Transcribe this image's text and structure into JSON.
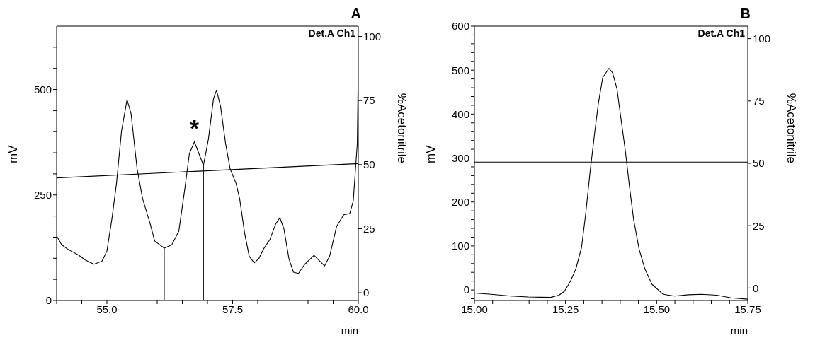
{
  "chart_data": [
    {
      "type": "line",
      "title": "A",
      "xlabel": "min",
      "ylabel": "mV",
      "y2label": "%Acetonitrile",
      "xlim": [
        54,
        60
      ],
      "xticks": [
        {
          "value": 54,
          "label": null
        },
        {
          "value": 54.5,
          "label": null
        },
        {
          "value": 55,
          "label": "55.0"
        },
        {
          "value": 55.5,
          "label": null
        },
        {
          "value": 56,
          "label": null
        },
        {
          "value": 56.5,
          "label": null
        },
        {
          "value": 57,
          "label": null
        },
        {
          "value": 57.5,
          "label": "57.5"
        },
        {
          "value": 58,
          "label": null
        },
        {
          "value": 58.5,
          "label": null
        },
        {
          "value": 59,
          "label": null
        },
        {
          "value": 59.5,
          "label": null
        },
        {
          "value": 60,
          "label": "60.0"
        }
      ],
      "ylim": [
        0,
        650
      ],
      "yticks": [
        0,
        {
          "value": 50,
          "label": null
        },
        {
          "value": 100,
          "label": null
        },
        {
          "value": 150,
          "label": null
        },
        {
          "value": 200,
          "label": null
        },
        250,
        {
          "value": 300,
          "label": null
        },
        {
          "value": 350,
          "label": null
        },
        {
          "value": 400,
          "label": null
        },
        {
          "value": 450,
          "label": null
        },
        500,
        {
          "value": 550,
          "label": null
        },
        {
          "value": 600,
          "label": null
        }
      ],
      "y2lim": [
        -3,
        104
      ],
      "y2ticks": [
        0,
        25,
        50,
        75,
        100
      ],
      "series": [
        {
          "color": "#000000",
          "x": [
            54.0,
            54.1,
            54.24,
            54.43,
            54.57,
            54.74,
            54.9,
            55.0,
            55.1,
            55.19,
            55.29,
            55.4,
            55.48,
            55.6,
            55.71,
            55.86,
            55.95,
            56.14,
            56.29,
            56.43,
            56.55,
            56.64,
            56.74,
            56.83,
            56.92,
            57.02,
            57.12,
            57.18,
            57.26,
            57.36,
            57.45,
            57.57,
            57.64,
            57.74,
            57.83,
            57.93,
            58.02,
            58.12,
            58.24,
            58.36,
            58.44,
            58.52,
            58.62,
            58.71,
            58.81,
            58.93,
            59.12,
            59.21,
            59.33,
            59.43,
            59.57,
            59.71,
            59.83,
            59.9,
            59.98,
            60.0
          ],
          "values": [
            153,
            132,
            120,
            108,
            96,
            86,
            93,
            117,
            194,
            277,
            401,
            476,
            443,
            312,
            241,
            182,
            141,
            124,
            132,
            164,
            265,
            348,
            376,
            348,
            320,
            383,
            478,
            498,
            460,
            372,
            312,
            277,
            241,
            159,
            105,
            89,
            99,
            123,
            144,
            182,
            196,
            170,
            99,
            67,
            64,
            85,
            107,
            96,
            82,
            105,
            176,
            203,
            206,
            236,
            372,
            561
          ]
        },
        {
          "color": "#000000",
          "axis": "y2",
          "x": [
            54,
            60
          ],
          "values": [
            44.8,
            50.4
          ]
        },
        {
          "color": "#000000",
          "x": [
            56.14,
            56.14
          ],
          "values": [
            0,
            124
          ]
        },
        {
          "color": "#000000",
          "x": [
            56.92,
            56.92
          ],
          "values": [
            0,
            320
          ]
        }
      ],
      "annotations": [
        "Det.A Ch1",
        {
          "text": "*",
          "x": 56.74,
          "y": 376
        }
      ]
    },
    {
      "type": "line",
      "title": "B",
      "xlabel": "min",
      "ylabel": "mV",
      "y2label": "%Acetonitrile",
      "xlim": [
        15,
        15.75
      ],
      "xticks": [
        {
          "value": 15,
          "label": "15.00"
        },
        {
          "value": 15.05,
          "label": null
        },
        {
          "value": 15.1,
          "label": null
        },
        {
          "value": 15.15,
          "label": null
        },
        {
          "value": 15.2,
          "label": null
        },
        {
          "value": 15.25,
          "label": "15.25"
        },
        {
          "value": 15.3,
          "label": null
        },
        {
          "value": 15.35,
          "label": null
        },
        {
          "value": 15.4,
          "label": null
        },
        {
          "value": 15.45,
          "label": null
        },
        {
          "value": 15.5,
          "label": "15.50"
        },
        {
          "value": 15.55,
          "label": null
        },
        {
          "value": 15.6,
          "label": null
        },
        {
          "value": 15.65,
          "label": null
        },
        {
          "value": 15.7,
          "label": null
        },
        {
          "value": 15.75,
          "label": "15.75"
        }
      ],
      "ylim": [
        -24,
        600
      ],
      "yticks": [
        {
          "value": -20,
          "label": null
        },
        0,
        {
          "value": 20,
          "label": null
        },
        {
          "value": 40,
          "label": null
        },
        {
          "value": 60,
          "label": null
        },
        {
          "value": 80,
          "label": null
        },
        100,
        {
          "value": 120,
          "label": null
        },
        {
          "value": 140,
          "label": null
        },
        {
          "value": 160,
          "label": null
        },
        {
          "value": 180,
          "label": null
        },
        200,
        {
          "value": 220,
          "label": null
        },
        {
          "value": 240,
          "label": null
        },
        {
          "value": 260,
          "label": null
        },
        {
          "value": 280,
          "label": null
        },
        300,
        {
          "value": 320,
          "label": null
        },
        {
          "value": 340,
          "label": null
        },
        {
          "value": 360,
          "label": null
        },
        {
          "value": 380,
          "label": null
        },
        400,
        {
          "value": 420,
          "label": null
        },
        {
          "value": 440,
          "label": null
        },
        {
          "value": 460,
          "label": null
        },
        {
          "value": 480,
          "label": null
        },
        500,
        {
          "value": 520,
          "label": null
        },
        {
          "value": 540,
          "label": null
        },
        {
          "value": 560,
          "label": null
        },
        {
          "value": 580,
          "label": null
        },
        600
      ],
      "y2lim": [
        -5,
        105
      ],
      "y2ticks": [
        0,
        25,
        50,
        75,
        100
      ],
      "series": [
        {
          "color": "#000000",
          "x": [
            15.0,
            15.046,
            15.1,
            15.147,
            15.209,
            15.232,
            15.247,
            15.263,
            15.278,
            15.294,
            15.305,
            15.317,
            15.329,
            15.34,
            15.352,
            15.369,
            15.379,
            15.391,
            15.402,
            15.414,
            15.425,
            15.437,
            15.452,
            15.468,
            15.487,
            15.518,
            15.549,
            15.588,
            15.623,
            15.665,
            15.704,
            15.75
          ],
          "values": [
            -7,
            -10,
            -14,
            -16,
            -17,
            -12,
            -3,
            19,
            47,
            97,
            171,
            266,
            351,
            424,
            483,
            504,
            494,
            458,
            390,
            317,
            238,
            159,
            92,
            47,
            13,
            -10,
            -14,
            -11,
            -10,
            -12,
            -18,
            -21
          ]
        },
        {
          "color": "#000000",
          "axis": "y2",
          "x": [
            15,
            15.75
          ],
          "values": [
            50.5,
            50.5
          ]
        }
      ],
      "annotations": [
        "Det.A Ch1"
      ]
    }
  ]
}
